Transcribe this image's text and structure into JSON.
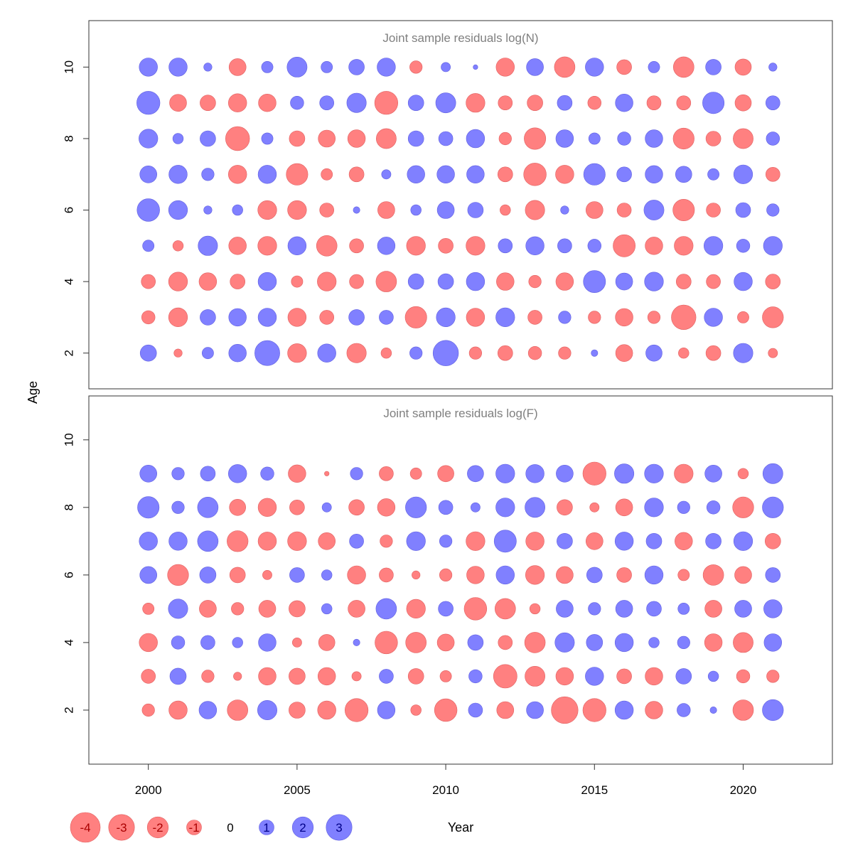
{
  "chart_data": [
    {
      "type": "scatter",
      "title": "Joint sample residuals log(N)",
      "xlabel": "Year",
      "ylabel": "Age",
      "xlim": [
        1998,
        2023
      ],
      "ylim": [
        1,
        11.3
      ],
      "x_ticks": [
        2000,
        2005,
        2010,
        2015,
        2020
      ],
      "y_ticks": [
        2,
        4,
        6,
        8,
        10
      ],
      "grid": false,
      "years": [
        2000,
        2001,
        2002,
        2003,
        2004,
        2005,
        2006,
        2007,
        2008,
        2009,
        2010,
        2011,
        2012,
        2013,
        2014,
        2015,
        2016,
        2017,
        2018,
        2019,
        2020,
        2021
      ],
      "ages": [
        2,
        3,
        4,
        5,
        6,
        7,
        8,
        9,
        10
      ],
      "residuals": [
        [
          1.2,
          -0.3,
          0.6,
          1.4,
          2.8,
          -1.6,
          1.5,
          -1.7,
          -0.5,
          0.7,
          2.9,
          -0.7,
          -1.0,
          -0.8,
          -0.7,
          0.2,
          -1.3,
          1.2,
          -0.5,
          -1.0,
          1.7,
          -0.4
        ],
        [
          -0.8,
          -1.6,
          1.1,
          1.4,
          1.5,
          -1.5,
          -0.9,
          1.1,
          0.9,
          -2.1,
          1.6,
          -1.5,
          1.6,
          -0.9,
          0.7,
          -0.7,
          -1.4,
          -0.7,
          -2.7,
          1.5,
          -0.6,
          -2.0
        ],
        [
          -0.9,
          -1.6,
          -1.4,
          -1.0,
          1.5,
          -0.6,
          -1.6,
          -0.9,
          -1.9,
          1.1,
          1.1,
          1.5,
          -1.4,
          -0.7,
          -1.4,
          2.2,
          1.3,
          1.6,
          -1.0,
          -0.9,
          1.5,
          -1.0
        ],
        [
          0.6,
          -0.5,
          1.7,
          -1.4,
          -1.6,
          1.5,
          -1.9,
          -0.9,
          1.4,
          -1.6,
          -1.0,
          -1.6,
          0.9,
          1.5,
          0.9,
          0.8,
          -2.2,
          -1.4,
          -1.6,
          1.6,
          0.8,
          1.6
        ],
        [
          2.3,
          1.6,
          0.3,
          0.5,
          -1.6,
          -1.6,
          -0.9,
          0.2,
          -1.3,
          0.5,
          1.3,
          1.1,
          -0.5,
          -1.7,
          0.3,
          -1.3,
          -0.9,
          1.8,
          -2.1,
          -0.9,
          1.0,
          0.7
        ],
        [
          1.3,
          1.5,
          0.7,
          -1.5,
          1.5,
          -2.1,
          -0.6,
          -1.0,
          0.4,
          1.4,
          1.4,
          1.4,
          -1.0,
          -2.3,
          -1.5,
          2.1,
          1.0,
          1.4,
          1.2,
          0.6,
          1.6,
          -0.9
        ],
        [
          1.6,
          0.5,
          1.1,
          -2.6,
          0.6,
          -1.1,
          -1.3,
          -1.4,
          -1.8,
          1.1,
          0.9,
          1.5,
          -0.7,
          -2.1,
          1.4,
          0.6,
          0.8,
          1.4,
          -2.0,
          -1.0,
          -1.8,
          0.8
        ],
        [
          2.4,
          -1.3,
          -1.1,
          -1.5,
          -1.4,
          0.8,
          0.9,
          1.7,
          -2.4,
          1.1,
          1.8,
          -1.6,
          -0.9,
          -1.1,
          1.0,
          -0.8,
          1.4,
          -0.9,
          -0.9,
          2.1,
          -1.2,
          0.9
        ],
        [
          1.5,
          1.5,
          0.3,
          -1.3,
          0.6,
          1.8,
          0.6,
          1.1,
          1.5,
          -0.7,
          0.4,
          0.1,
          -1.5,
          1.3,
          -1.9,
          1.5,
          -1.0,
          0.6,
          -1.9,
          1.1,
          -1.2,
          0.3
        ]
      ]
    },
    {
      "type": "scatter",
      "title": "Joint sample residuals log(F)",
      "xlabel": "Year",
      "ylabel": "Age",
      "xlim": [
        1998,
        2023
      ],
      "ylim": [
        0.4,
        11.3
      ],
      "x_ticks": [
        2000,
        2005,
        2010,
        2015,
        2020
      ],
      "y_ticks": [
        2,
        4,
        6,
        8,
        10
      ],
      "grid": false,
      "years": [
        2000,
        2001,
        2002,
        2003,
        2004,
        2005,
        2006,
        2007,
        2008,
        2009,
        2010,
        2011,
        2012,
        2013,
        2014,
        2015,
        2016,
        2017,
        2018,
        2019,
        2020,
        2021
      ],
      "ages": [
        2,
        3,
        4,
        5,
        6,
        7,
        8,
        9
      ],
      "residuals": [
        [
          -0.7,
          -1.5,
          1.4,
          -1.9,
          1.7,
          -1.2,
          -1.5,
          -2.4,
          1.4,
          -0.5,
          -2.3,
          0.9,
          -1.3,
          1.3,
          -3.2,
          -2.4,
          1.5,
          -1.4,
          0.8,
          0.2,
          -1.9,
          2.0
        ],
        [
          -0.9,
          1.2,
          -0.7,
          -0.3,
          -1.4,
          -1.2,
          -1.4,
          -0.4,
          0.9,
          -1.1,
          -0.6,
          0.8,
          -2.5,
          -1.8,
          -1.4,
          1.5,
          -1.0,
          -1.4,
          1.1,
          0.5,
          -0.8,
          -0.7
        ],
        [
          -1.5,
          0.8,
          0.9,
          0.5,
          1.4,
          -0.4,
          -1.2,
          0.2,
          -2.3,
          -1.9,
          -1.3,
          1.1,
          -0.9,
          -1.9,
          1.7,
          1.2,
          1.5,
          0.5,
          0.7,
          -1.4,
          -1.8,
          1.4
        ],
        [
          -0.6,
          1.7,
          -1.3,
          -0.7,
          -1.3,
          -1.2,
          0.5,
          -1.3,
          1.9,
          -1.6,
          1.0,
          -2.3,
          -1.9,
          -0.5,
          1.3,
          0.7,
          1.3,
          1.0,
          0.6,
          -1.3,
          1.3,
          1.5
        ],
        [
          1.3,
          -2.0,
          1.2,
          -1.1,
          -0.4,
          1.0,
          0.5,
          -1.5,
          -0.9,
          -0.3,
          -0.7,
          -1.4,
          1.5,
          -1.6,
          -1.3,
          1.1,
          -1.0,
          1.5,
          -0.6,
          -1.9,
          -1.3,
          1.0
        ],
        [
          1.5,
          1.5,
          1.9,
          -2.0,
          -1.5,
          -1.6,
          -1.3,
          0.9,
          -0.7,
          1.6,
          0.7,
          -1.6,
          2.2,
          -1.5,
          1.1,
          -1.3,
          1.5,
          1.1,
          -1.4,
          1.1,
          1.6,
          -1.1
        ],
        [
          2.1,
          0.7,
          1.9,
          -1.2,
          -1.5,
          -1.0,
          0.4,
          -1.1,
          -1.4,
          2.0,
          0.9,
          0.4,
          1.6,
          1.8,
          -1.1,
          -0.4,
          -1.3,
          1.6,
          0.7,
          0.8,
          -2.0,
          2.0
        ],
        [
          1.3,
          0.7,
          1.0,
          1.5,
          0.8,
          -1.4,
          -0.1,
          0.7,
          -0.9,
          -0.6,
          -1.2,
          1.2,
          1.6,
          1.5,
          1.3,
          -2.4,
          1.7,
          1.6,
          -1.6,
          1.3,
          -0.5,
          1.8
        ]
      ]
    }
  ],
  "legend": {
    "items": [
      {
        "label": "-4",
        "value": -4
      },
      {
        "label": "-3",
        "value": -3
      },
      {
        "label": "-2",
        "value": -2
      },
      {
        "label": "-1",
        "value": -1
      },
      {
        "label": "0",
        "value": 0
      },
      {
        "label": "1",
        "value": 1
      },
      {
        "label": "2",
        "value": 2
      },
      {
        "label": "3",
        "value": 3
      }
    ]
  },
  "colors": {
    "negative_fill": "#ff8080",
    "negative_stroke": "#e06060",
    "positive_fill": "#8080ff",
    "positive_stroke": "#6060e0",
    "panel_title": "#7f7f7f",
    "axis": "#333333"
  }
}
